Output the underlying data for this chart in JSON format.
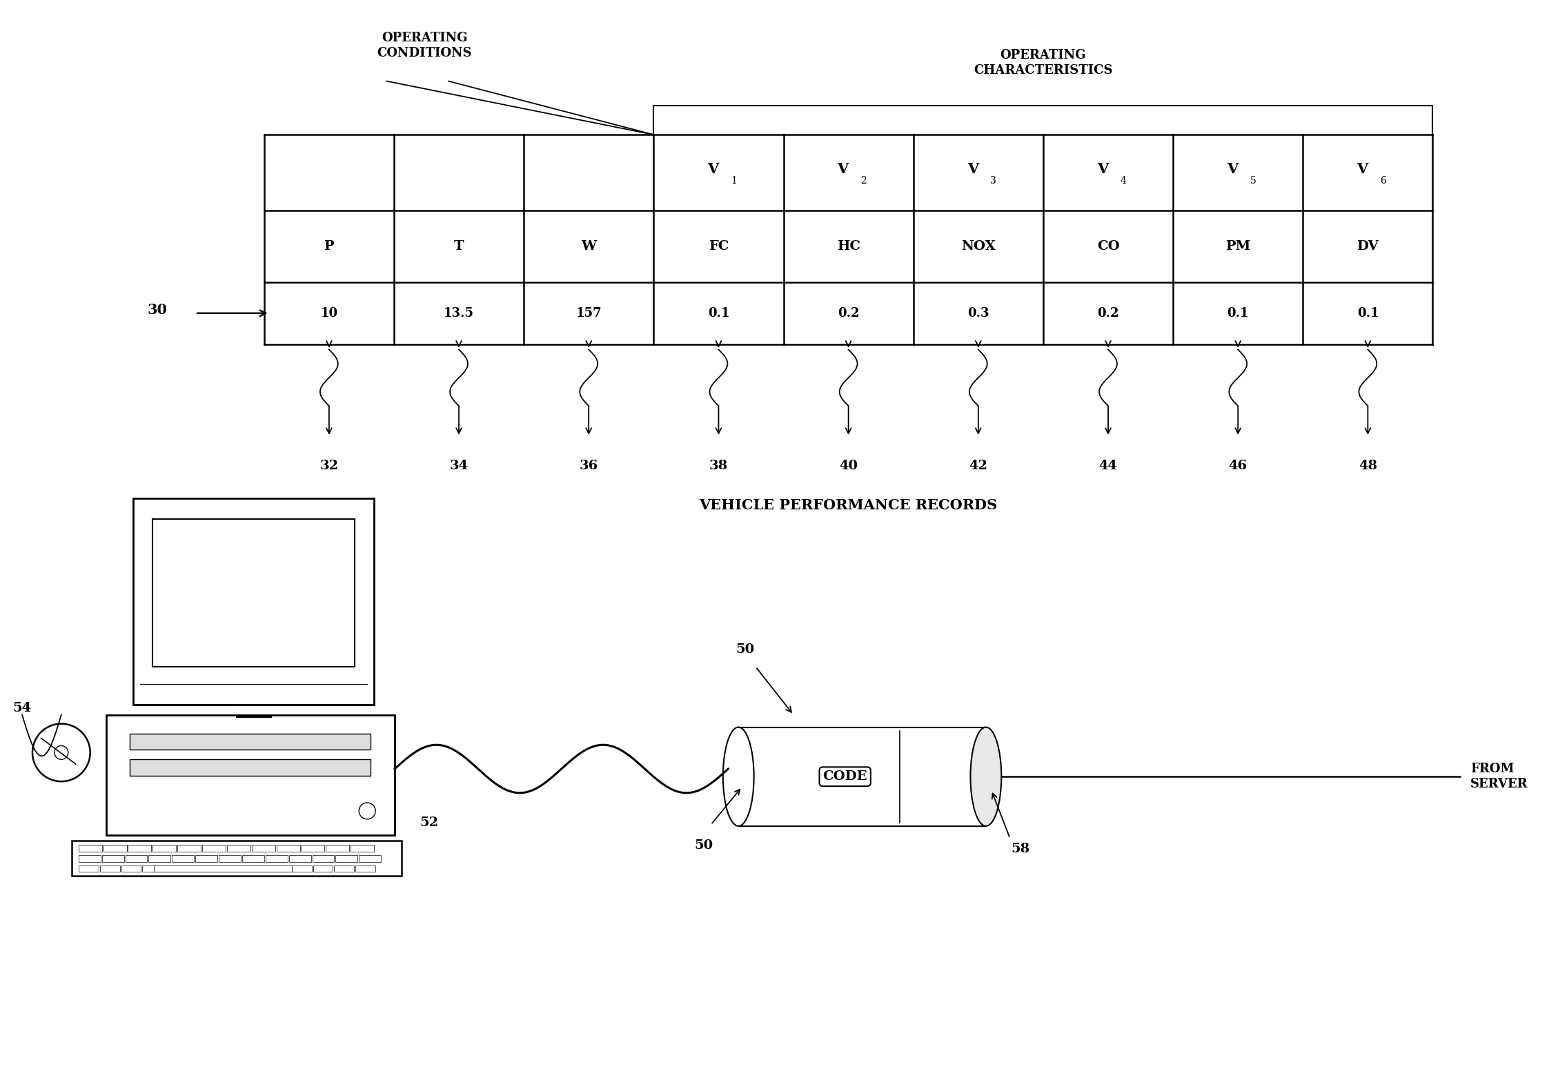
{
  "bg_color": "#ffffff",
  "table": {
    "col_headers_row2": [
      "P",
      "T",
      "W",
      "FC",
      "HC",
      "NOX",
      "CO",
      "PM",
      "DV"
    ],
    "data_row": [
      "10",
      "13.5",
      "157",
      "0.1",
      "0.2",
      "0.3",
      "0.2",
      "0.1",
      "0.1"
    ],
    "num_cols": 9,
    "ref_numbers": [
      "32",
      "34",
      "36",
      "38",
      "40",
      "42",
      "44",
      "46",
      "48"
    ],
    "record_label": "30",
    "oc_conditions_label": "OPERATING\nCONDITIONS",
    "oc_characteristics_label": "OPERATING\nCHARACTERISTICS",
    "footer_label": "VEHICLE PERFORMANCE RECORDS"
  },
  "computer": {
    "label_50_arrow": "50",
    "label_52": "52",
    "label_54": "54",
    "label_58": "58",
    "label_50b": "50",
    "code_label": "CODE",
    "from_server": "FROM\nSERVER"
  }
}
